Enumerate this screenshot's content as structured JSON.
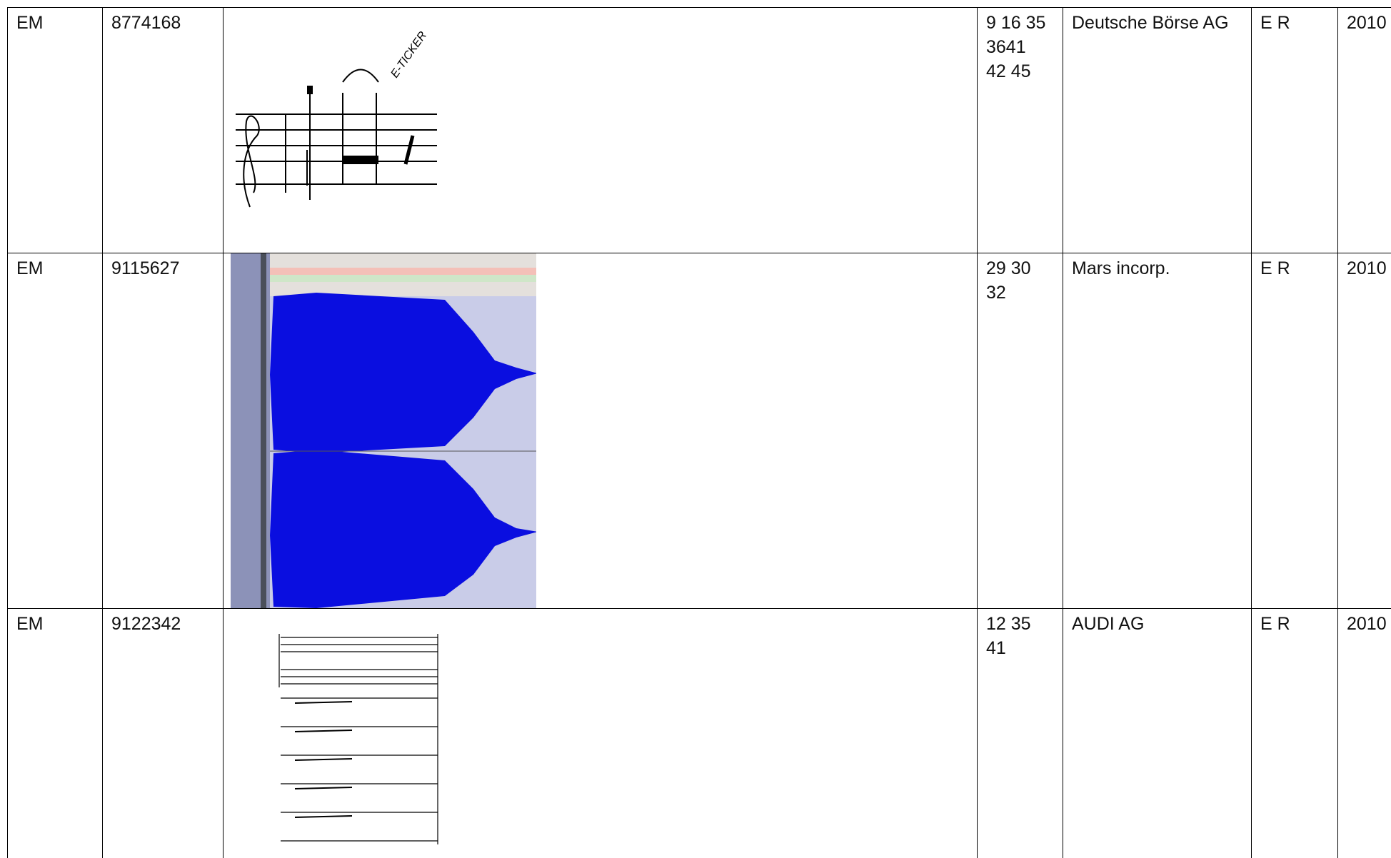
{
  "table": {
    "rows": [
      {
        "office": "EM",
        "number": "8774168",
        "image_text": "E-TICKER",
        "classes": [
          "9 16 35",
          "3641",
          "42 45"
        ],
        "owner": "Deutsche Börse AG",
        "status": "E R",
        "year": "2010"
      },
      {
        "office": "EM",
        "number": "9115627",
        "classes": [
          "29 30",
          "32"
        ],
        "owner": "Mars incorp.",
        "status": "E R",
        "year": "2010"
      },
      {
        "office": "EM",
        "number": "9122342",
        "classes": [
          "12 35",
          "41"
        ],
        "owner": "AUDI AG",
        "status": "E R",
        "year": "2010"
      }
    ]
  }
}
